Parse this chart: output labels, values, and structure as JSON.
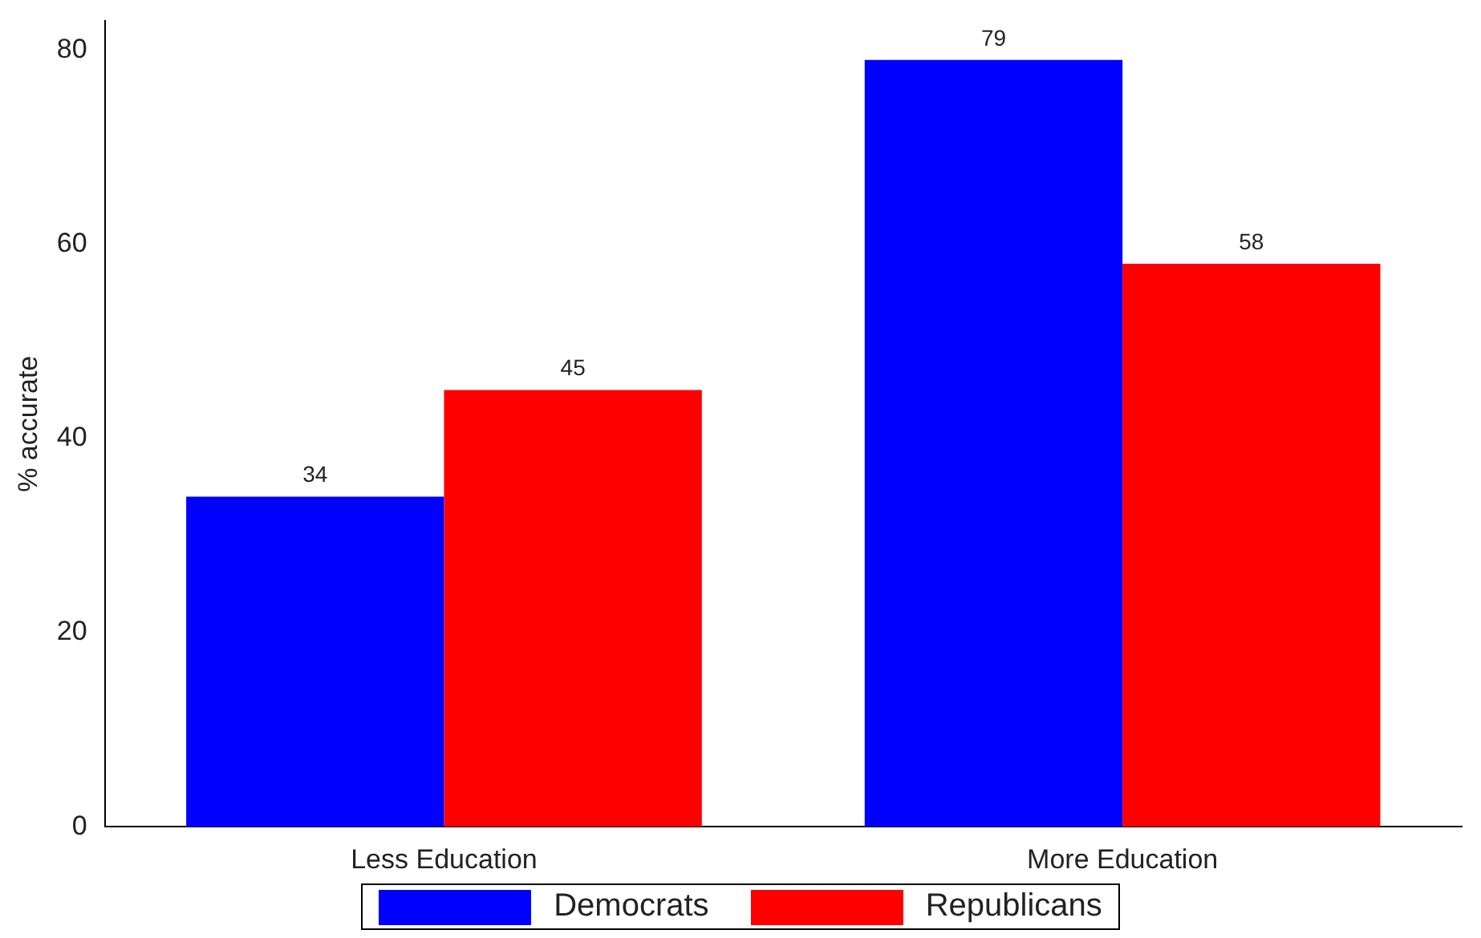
{
  "chart_data": {
    "type": "bar",
    "ylabel": "% accurate",
    "categories": [
      "Less Education",
      "More Education"
    ],
    "series": [
      {
        "name": "Democrats",
        "color": "#0000ff",
        "values": [
          34,
          79
        ]
      },
      {
        "name": "Republicans",
        "color": "#ff0000",
        "values": [
          45,
          58
        ]
      }
    ],
    "ylim": [
      0,
      83
    ],
    "yticks": [
      0,
      20,
      40,
      60,
      80
    ],
    "grid": false,
    "legend": "bottom",
    "data_labels": true
  }
}
